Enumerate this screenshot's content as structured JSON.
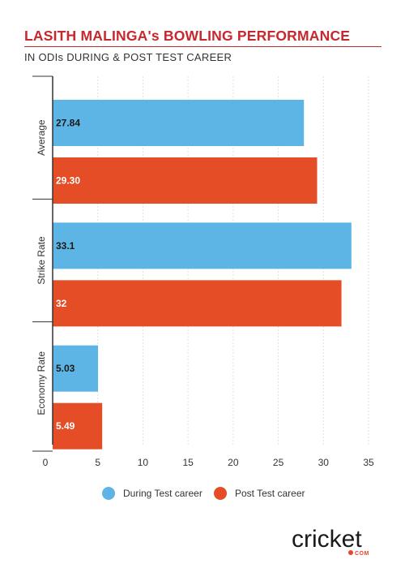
{
  "title": "LASITH MALINGA's BOWLING PERFORMANCE",
  "subtitle": "IN ODIs DURING & POST TEST CAREER",
  "logo": {
    "text": "cricket",
    "sub": "COM"
  },
  "colors": {
    "during": "#5db5e6",
    "post": "#e44d26",
    "title": "#c7282e"
  },
  "chart_data": {
    "type": "bar",
    "orientation": "horizontal",
    "categories": [
      "Average",
      "Strike Rate",
      "Economy Rate"
    ],
    "series": [
      {
        "name": "During Test career",
        "values": [
          27.84,
          33.1,
          5.03
        ],
        "labels": [
          "27.84",
          "33.1",
          "5.03"
        ],
        "color": "#5db5e6",
        "label_color": "#1a1a1a"
      },
      {
        "name": "Post Test career",
        "values": [
          29.3,
          32,
          5.49
        ],
        "labels": [
          "29.30",
          "32",
          "5.49"
        ],
        "color": "#e44d26",
        "label_color": "#ffffff"
      }
    ],
    "xlim": [
      0,
      35
    ],
    "xticks": [
      "0",
      "5",
      "10",
      "15",
      "20",
      "25",
      "30",
      "35"
    ],
    "grid": true,
    "legend": "bottom"
  }
}
